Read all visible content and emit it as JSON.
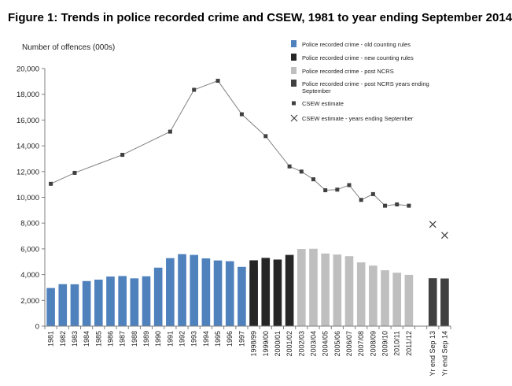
{
  "figure_title": "Figure 1: Trends in police recorded crime and CSEW, 1981 to year ending September 2014",
  "chart_data": {
    "type": "bar",
    "title": "Figure 1: Trends in police recorded crime and CSEW, 1981 to year ending September 2014",
    "ylabel": "Number of offences (000s)",
    "xlabel": "",
    "ylim": [
      0,
      20000
    ],
    "yticks": [
      0,
      2000,
      4000,
      6000,
      8000,
      10000,
      12000,
      14000,
      16000,
      18000,
      20000
    ],
    "ytick_labels": [
      "0",
      "2,000",
      "4,000",
      "6,000",
      "8,000",
      "10,000",
      "12,000",
      "14,000",
      "16,000",
      "18,000",
      "20,000"
    ],
    "grid": false,
    "legend_position": "top-right",
    "categories": [
      "1981",
      "1982",
      "1983",
      "1984",
      "1985",
      "1986",
      "1987",
      "1988",
      "1989",
      "1990",
      "1991",
      "1992",
      "1993",
      "1994",
      "1995",
      "1996",
      "1997",
      "1998/99",
      "1999/00",
      "2000/01",
      "2001/02",
      "2002/03",
      "2003/04",
      "2004/05",
      "2005/06",
      "2006/07",
      "2007/08",
      "2008/09",
      "2009/10",
      "2010/11",
      "2011/12",
      "",
      "Yr end Sep 13",
      "Yr end Sep 14"
    ],
    "series": [
      {
        "name": "Police recorded crime - old counting rules",
        "type": "bar",
        "color": "#4f81bd",
        "values": [
          2960,
          3260,
          3250,
          3500,
          3610,
          3850,
          3890,
          3710,
          3870,
          4540,
          5280,
          5590,
          5530,
          5260,
          5100,
          5040,
          4600,
          4480,
          null,
          null,
          null,
          null,
          null,
          null,
          null,
          null,
          null,
          null,
          null,
          null,
          null,
          null,
          null,
          null
        ]
      },
      {
        "name": "Police recorded crime - new counting rules",
        "type": "bar",
        "color": "#262626",
        "values": [
          null,
          null,
          null,
          null,
          null,
          null,
          null,
          null,
          null,
          null,
          null,
          null,
          null,
          null,
          null,
          null,
          null,
          5110,
          5300,
          5170,
          5530,
          null,
          null,
          null,
          null,
          null,
          null,
          null,
          null,
          null,
          null,
          null,
          null,
          null
        ]
      },
      {
        "name": "Police recorded crime - post NCRS",
        "type": "bar",
        "color": "#bfbfbf",
        "values": [
          null,
          null,
          null,
          null,
          null,
          null,
          null,
          null,
          null,
          null,
          null,
          null,
          null,
          null,
          null,
          null,
          null,
          null,
          null,
          null,
          null,
          5990,
          6010,
          5640,
          5560,
          5430,
          4950,
          4700,
          4340,
          4150,
          3980,
          null,
          null,
          null
        ]
      },
      {
        "name": "Police recorded crime - post NCRS years ending September",
        "type": "bar",
        "color": "#404040",
        "values": [
          null,
          null,
          null,
          null,
          null,
          null,
          null,
          null,
          null,
          null,
          null,
          null,
          null,
          null,
          null,
          null,
          null,
          null,
          null,
          null,
          null,
          null,
          null,
          null,
          null,
          null,
          null,
          null,
          null,
          null,
          null,
          null,
          3720,
          3700
        ]
      },
      {
        "name": "CSEW estimate",
        "type": "line",
        "color": "#808080",
        "x": [
          "1981",
          "1983",
          "1987",
          "1991",
          "1993",
          "1995",
          "1997",
          "1999/00",
          "2001/02",
          "2002/03",
          "2003/04",
          "2004/05",
          "2005/06",
          "2006/07",
          "2007/08",
          "2008/09",
          "2009/10",
          "2010/11",
          "2011/12"
        ],
        "values": [
          11050,
          11900,
          13300,
          15100,
          18350,
          19050,
          16450,
          14750,
          12400,
          12000,
          11400,
          10550,
          10600,
          10950,
          9800,
          10250,
          9350,
          9450,
          9350
        ]
      },
      {
        "name": "CSEW estimate - years ending September",
        "type": "scatter",
        "color": "#404040",
        "x": [
          "Yr end Sep 13",
          "Yr end Sep 14"
        ],
        "values": [
          7900,
          7050
        ]
      }
    ]
  }
}
